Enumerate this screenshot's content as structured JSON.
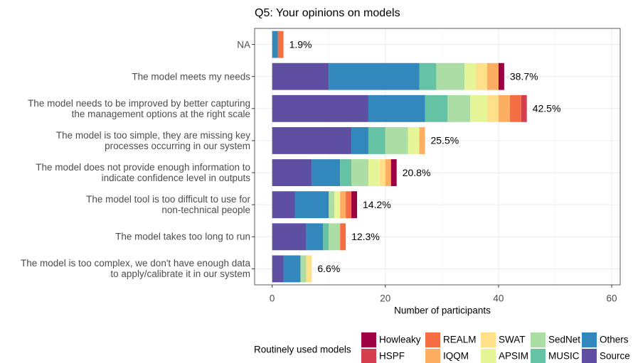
{
  "chart_data": {
    "type": "stacked-barh",
    "title": "Q5: Your opinions on models",
    "xlabel": "Number of participants",
    "legend_title": "Routinely used models",
    "categories": [
      "NA",
      "The model meets my needs",
      "The model needs to be improved by better capturing\nthe management options at the right scale",
      "The model is too simple, they are missing key\nprocesses occurring in our system",
      "The model does not provide enough information to\nindicate confidence level in outputs",
      "The model tool is too difficult to use for\nnon-technical people",
      "The model takes too long to run",
      "The model is too complex, we don't have enough data\nto apply/calibrate it in our system"
    ],
    "annotations": [
      "1.9%",
      "38.7%",
      "42.5%",
      "25.5%",
      "20.8%",
      "14.2%",
      "12.3%",
      "6.6%"
    ],
    "series": [
      {
        "name": "Source",
        "color": "#5E4FA2",
        "values": [
          0,
          10,
          17,
          14,
          7,
          4,
          6,
          2
        ]
      },
      {
        "name": "Others",
        "color": "#3288BD",
        "values": [
          1,
          16,
          10,
          3,
          5,
          6,
          3,
          3
        ]
      },
      {
        "name": "MUSIC",
        "color": "#66C2A5",
        "values": [
          0,
          3,
          4,
          3,
          2,
          0,
          1,
          0
        ]
      },
      {
        "name": "SedNet",
        "color": "#ABDDA4",
        "values": [
          0,
          5,
          4,
          4,
          3,
          1,
          2,
          1
        ]
      },
      {
        "name": "APSIM",
        "color": "#E6F598",
        "values": [
          0,
          2,
          3,
          2,
          2,
          1,
          0,
          0
        ]
      },
      {
        "name": "SWAT",
        "color": "#FEE08B",
        "values": [
          0,
          2,
          2,
          0,
          1,
          0,
          0,
          1
        ]
      },
      {
        "name": "IQQM",
        "color": "#FDAE61",
        "values": [
          0,
          2,
          2,
          1,
          1,
          1,
          0,
          0
        ]
      },
      {
        "name": "REALM",
        "color": "#F46D43",
        "values": [
          1,
          0,
          2,
          0,
          0,
          1,
          1,
          0
        ]
      },
      {
        "name": "HSPF",
        "color": "#D53E4F",
        "values": [
          0,
          0,
          1,
          0,
          0,
          0,
          0,
          0
        ]
      },
      {
        "name": "Howleaky",
        "color": "#9E0142",
        "values": [
          0,
          1,
          0,
          0,
          1,
          1,
          0,
          0
        ]
      }
    ],
    "xlim": [
      -3.1,
      61.5
    ],
    "xticks": [
      0,
      20,
      40,
      60
    ],
    "grid": true
  }
}
